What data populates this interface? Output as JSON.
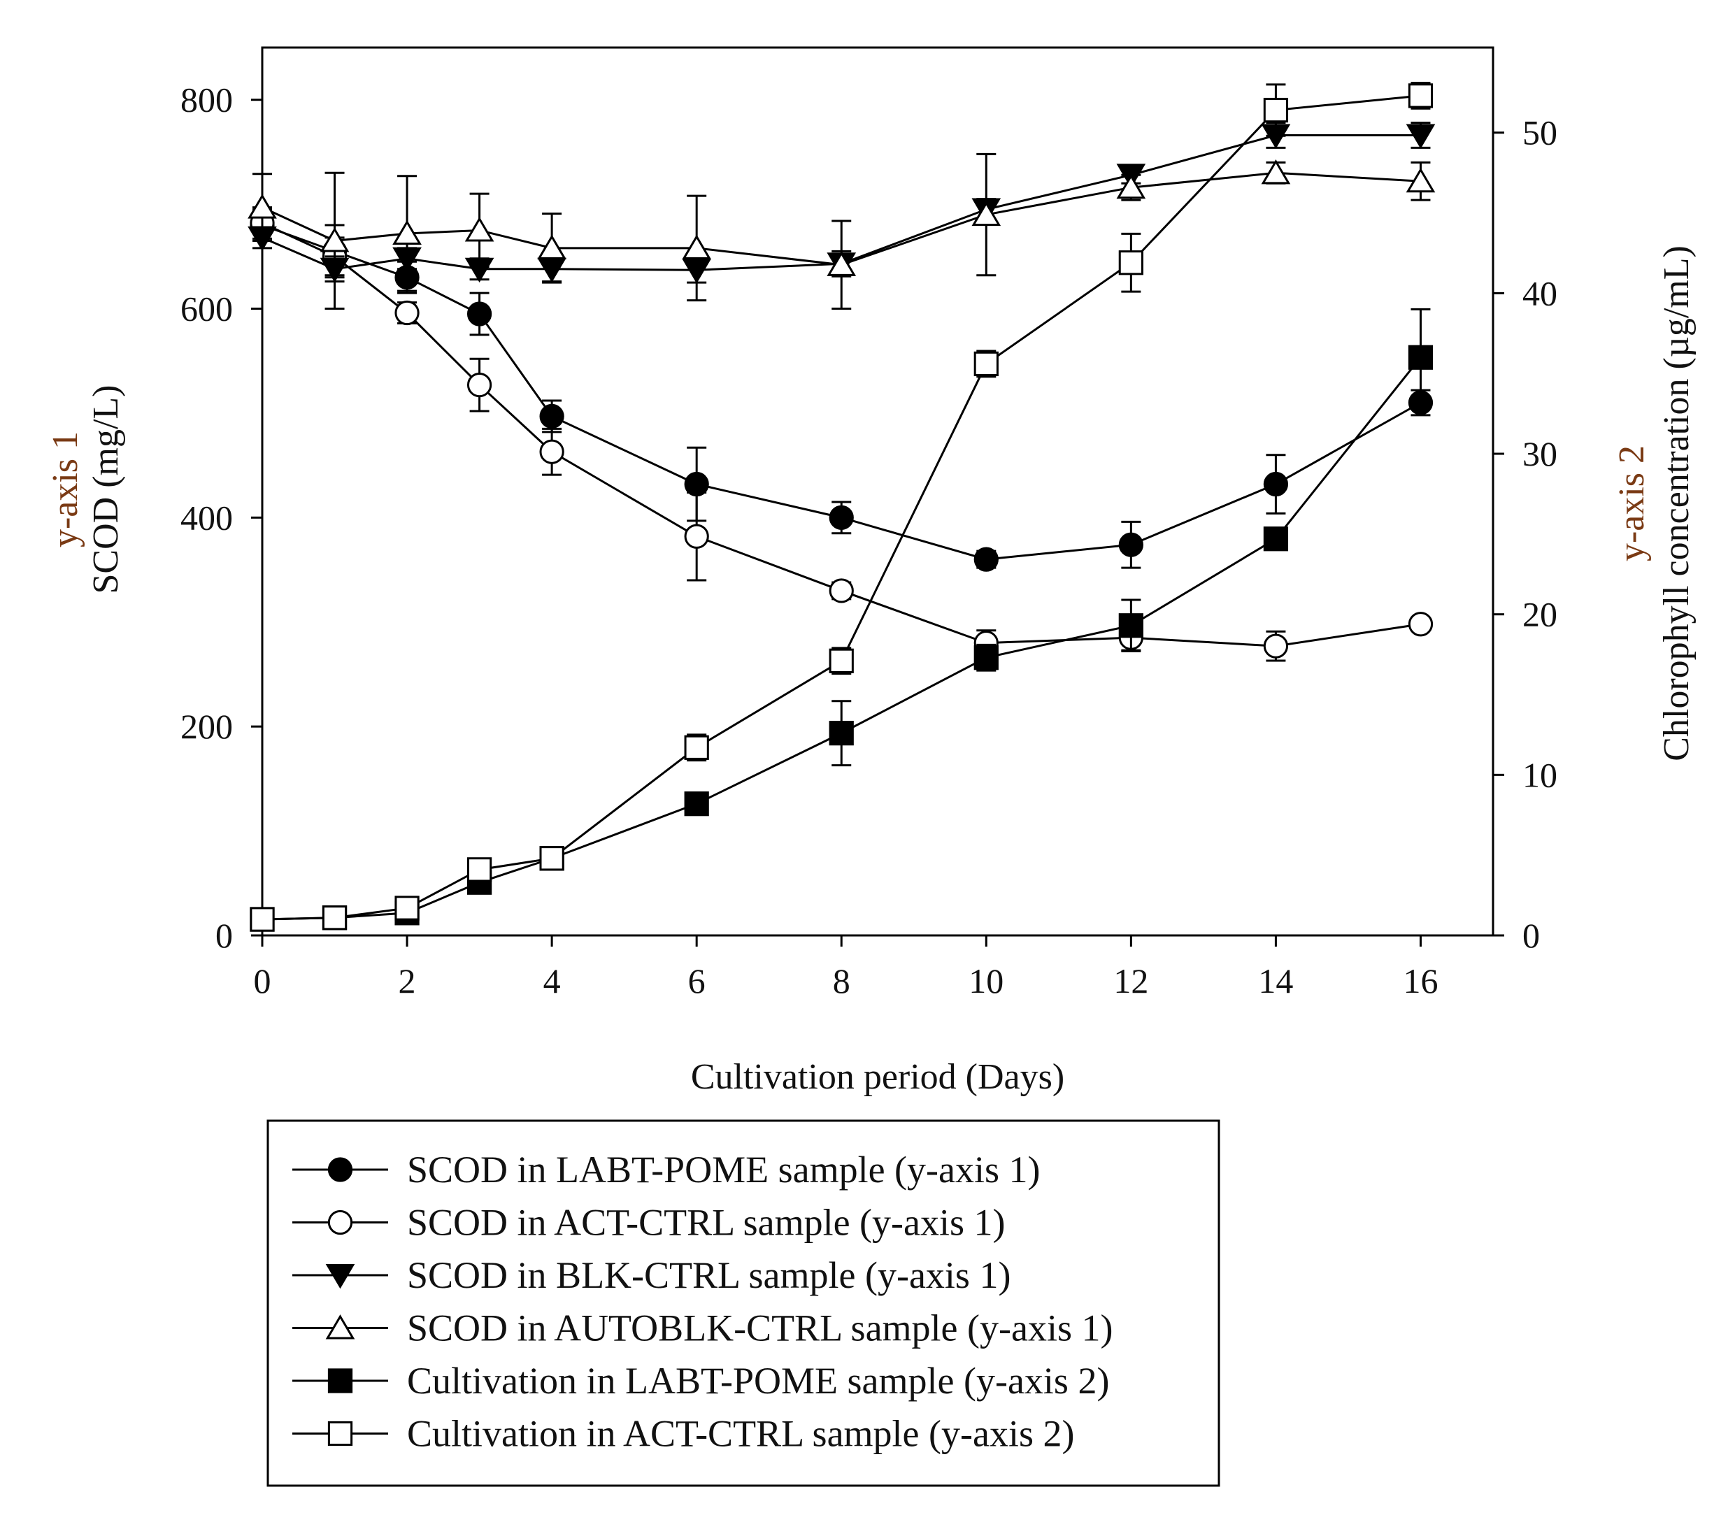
{
  "chart_data": {
    "type": "line",
    "xlabel": "Cultivation period (Days)",
    "ylabel_left_line1": "y-axis 1",
    "ylabel_left_line2": "SCOD (mg/L)",
    "ylabel_right_line1": "y-axis 2",
    "ylabel_right_line2": "Chlorophyll concentration (µg/mL)",
    "xlim": [
      0,
      17
    ],
    "ylim_left": [
      0,
      850
    ],
    "ylim_right": [
      0,
      55.3
    ],
    "x_ticks": [
      0,
      2,
      4,
      6,
      8,
      10,
      12,
      14,
      16
    ],
    "x_tick_labels": [
      "0",
      "2",
      "4",
      "6",
      "8",
      "10",
      "12",
      "14",
      "16"
    ],
    "y_left_ticks": [
      0,
      200,
      400,
      600,
      800
    ],
    "y_left_tick_labels": [
      "0",
      "200",
      "400",
      "600",
      "800"
    ],
    "y_right_ticks": [
      0,
      10,
      20,
      30,
      40,
      50
    ],
    "y_right_tick_labels": [
      "0",
      "10",
      "20",
      "30",
      "40",
      "50"
    ],
    "legend_position": "below",
    "series": [
      {
        "name": "SCOD in LABT-POME sample (y-axis 1)",
        "axis": "left",
        "marker": "circle",
        "filled": true,
        "x": [
          0,
          1,
          2,
          3,
          4,
          6,
          8,
          10,
          12,
          14,
          16
        ],
        "y": [
          680,
          655,
          630,
          595,
          497,
          432,
          400,
          360,
          374,
          432,
          510
        ],
        "err": [
          15,
          25,
          15,
          20,
          15,
          35,
          15,
          8,
          22,
          28,
          12
        ]
      },
      {
        "name": "SCOD in ACT-CTRL sample (y-axis 1)",
        "axis": "left",
        "marker": "circle",
        "filled": false,
        "x": [
          0,
          1,
          2,
          3,
          4,
          6,
          8,
          10,
          12,
          14,
          16
        ],
        "y": [
          682,
          650,
          596,
          527,
          463,
          382,
          330,
          280,
          285,
          277,
          298
        ],
        "err": [
          15,
          18,
          10,
          25,
          22,
          42,
          8,
          12,
          12,
          14,
          6
        ]
      },
      {
        "name": "SCOD in BLK-CTRL sample (y-axis 1)",
        "axis": "left",
        "marker": "triangle-down",
        "filled": true,
        "x": [
          0,
          1,
          2,
          3,
          4,
          6,
          8,
          10,
          12,
          14,
          16
        ],
        "y": [
          668,
          638,
          648,
          638,
          638,
          637,
          643,
          695,
          728,
          766,
          766
        ],
        "err": [
          10,
          12,
          10,
          10,
          12,
          12,
          12,
          10,
          8,
          12,
          12
        ]
      },
      {
        "name": "SCOD in AUTOBLK-CTRL sample (y-axis 1)",
        "axis": "left",
        "marker": "triangle-up",
        "filled": false,
        "x": [
          0,
          1,
          2,
          3,
          4,
          6,
          8,
          10,
          12,
          14,
          16
        ],
        "y": [
          697,
          665,
          672,
          675,
          658,
          658,
          642,
          690,
          716,
          730,
          722
        ],
        "err": [
          32,
          65,
          55,
          35,
          33,
          50,
          42,
          58,
          12,
          10,
          18
        ]
      },
      {
        "name": "Cultivation in LABT-POME sample (y-axis 2)",
        "axis": "right",
        "marker": "square",
        "filled": true,
        "x": [
          0,
          1,
          2,
          3,
          4,
          6,
          8,
          10,
          12,
          14,
          16
        ],
        "y": [
          1.0,
          1.1,
          1.4,
          3.3,
          4.8,
          8.2,
          12.6,
          17.3,
          19.3,
          24.7,
          36.0
        ],
        "err": [
          0.2,
          0.2,
          0.3,
          0.5,
          0.5,
          0.5,
          2.0,
          0.8,
          1.6,
          0.6,
          3.0
        ]
      },
      {
        "name": "Cultivation in ACT-CTRL sample (y-axis 2)",
        "axis": "right",
        "marker": "square",
        "filled": false,
        "x": [
          0,
          1,
          2,
          3,
          4,
          6,
          8,
          10,
          12,
          14,
          16
        ],
        "y": [
          1.0,
          1.1,
          1.7,
          4.1,
          4.8,
          11.7,
          17.1,
          35.6,
          41.9,
          51.4,
          52.3
        ],
        "err": [
          0.2,
          0.2,
          0.3,
          0.5,
          0.5,
          0.8,
          0.8,
          0.8,
          1.8,
          1.6,
          0.8
        ]
      }
    ]
  }
}
